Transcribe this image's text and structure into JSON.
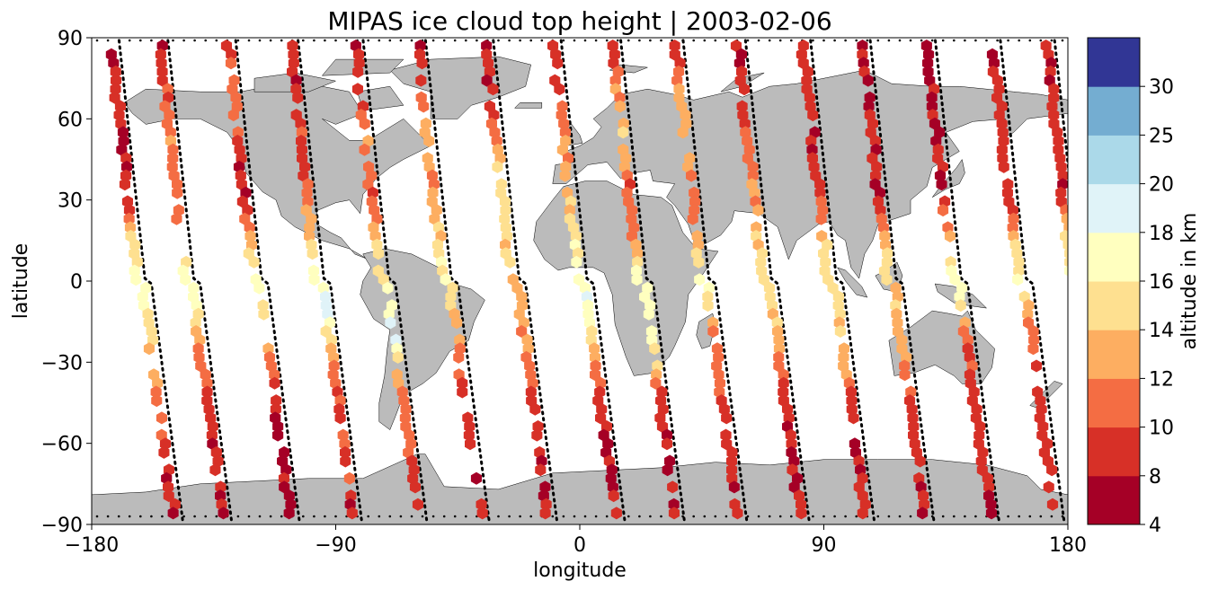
{
  "chart_data": {
    "type": "scatter",
    "title": "MIPAS ice cloud top height | 2003-02-06",
    "xlabel": "longitude",
    "ylabel": "latitude",
    "xlim": [
      -180,
      180
    ],
    "ylim": [
      -90,
      90
    ],
    "xticks": [
      -180,
      -90,
      0,
      90,
      180
    ],
    "yticks": [
      -90,
      -60,
      -30,
      0,
      30,
      60,
      90
    ],
    "colorbar": {
      "label": "altitude in km",
      "boundaries": [
        4,
        8,
        10,
        12,
        14,
        16,
        18,
        20,
        25,
        30
      ],
      "colors": [
        "#a50026",
        "#d73027",
        "#f46d43",
        "#fdae61",
        "#fee090",
        "#ffffbf",
        "#e0f3f8",
        "#abd9e9",
        "#74add1",
        "#313695"
      ],
      "tick_labels": [
        "4",
        "8",
        "10",
        "12",
        "14",
        "16",
        "18",
        "20",
        "25",
        "30"
      ]
    },
    "map": {
      "land_color": "#bbbbbb",
      "ocean_color": "#ffffff"
    },
    "orbits": [
      {
        "lon0": -173,
        "lat_vals": [
          89,
          80,
          65,
          45,
          30,
          12,
          0,
          -15,
          -20,
          -35,
          -55,
          -75
        ],
        "h_vals": [
          8,
          8,
          8,
          8,
          9,
          15,
          17,
          16,
          15,
          13,
          10,
          8
        ]
      },
      {
        "lon0": -155,
        "lat_vals": [
          88,
          70,
          50,
          30,
          10,
          -5,
          -25,
          -45,
          -65,
          -85
        ],
        "h_vals": [
          8,
          10,
          12,
          10,
          15,
          17,
          12,
          9,
          8,
          8
        ]
      },
      {
        "lon0": -130,
        "lat_vals": [
          88,
          68,
          50,
          30,
          10,
          0,
          -20,
          -40,
          -60,
          -82
        ],
        "h_vals": [
          8,
          12,
          9,
          8,
          15,
          17,
          13,
          9,
          8,
          8
        ]
      },
      {
        "lon0": -107,
        "lat_vals": [
          89,
          72,
          55,
          40,
          20,
          0,
          -10,
          -30,
          -50,
          -70,
          -83
        ],
        "h_vals": [
          8,
          8,
          10,
          9,
          14,
          17,
          20,
          12,
          9,
          10,
          8
        ]
      },
      {
        "lon0": -83,
        "lat_vals": [
          88,
          70,
          50,
          30,
          10,
          -5,
          -20,
          -40,
          -60,
          -80
        ],
        "h_vals": [
          8,
          8,
          12,
          10,
          14,
          17,
          18,
          12,
          10,
          9
        ]
      },
      {
        "lon0": -60,
        "lat_vals": [
          89,
          70,
          50,
          35,
          20,
          0,
          -20,
          -40,
          -60,
          -80
        ],
        "h_vals": [
          8,
          10,
          13,
          12,
          14,
          16,
          12,
          10,
          9,
          8
        ]
      },
      {
        "lon0": -35,
        "lat_vals": [
          88,
          65,
          45,
          25,
          10,
          -5,
          -20,
          -40,
          -60,
          -80
        ],
        "h_vals": [
          8,
          9,
          14,
          15,
          14,
          13,
          12,
          10,
          9,
          8
        ]
      },
      {
        "lon0": -10,
        "lat_vals": [
          88,
          70,
          50,
          30,
          10,
          -10,
          -25,
          -45,
          -65,
          -80
        ],
        "h_vals": [
          8,
          9,
          12,
          14,
          16,
          18,
          13,
          9,
          8,
          8
        ]
      },
      {
        "lon0": 12,
        "lat_vals": [
          88,
          70,
          55,
          35,
          15,
          0,
          -10,
          -25,
          -45,
          -65,
          -80
        ],
        "h_vals": [
          8,
          12,
          14,
          10,
          12,
          17,
          18,
          16,
          9,
          8,
          8
        ]
      },
      {
        "lon0": 35,
        "lat_vals": [
          88,
          70,
          50,
          30,
          10,
          0,
          -20,
          -40,
          -60,
          -80
        ],
        "h_vals": [
          8,
          12,
          14,
          10,
          15,
          17,
          12,
          10,
          9,
          8
        ]
      },
      {
        "lon0": 58,
        "lat_vals": [
          88,
          70,
          50,
          30,
          10,
          -5,
          -20,
          -40,
          -60,
          -80
        ],
        "h_vals": [
          8,
          9,
          10,
          12,
          15,
          15,
          13,
          9,
          8,
          8
        ]
      },
      {
        "lon0": 82,
        "lat_vals": [
          88,
          70,
          50,
          30,
          10,
          0,
          -25,
          -45,
          -65,
          -82
        ],
        "h_vals": [
          8,
          8,
          8,
          10,
          15,
          15,
          14,
          9,
          8,
          9
        ]
      },
      {
        "lon0": 104,
        "lat_vals": [
          88,
          70,
          50,
          30,
          10,
          0,
          -20,
          -40,
          -60,
          -80
        ],
        "h_vals": [
          8,
          8,
          8,
          8,
          15,
          14,
          13,
          10,
          9,
          8
        ]
      },
      {
        "lon0": 128,
        "lat_vals": [
          88,
          70,
          50,
          30,
          10,
          -5,
          -25,
          -45,
          -65,
          -82
        ],
        "h_vals": [
          8,
          8,
          8,
          8,
          16,
          17,
          10,
          9,
          9,
          8
        ]
      },
      {
        "lon0": 152,
        "lat_vals": [
          88,
          68,
          50,
          30,
          12,
          0,
          -20,
          -40,
          -60,
          -80
        ],
        "h_vals": [
          8,
          9,
          9,
          8,
          15,
          17,
          10,
          9,
          8,
          9
        ]
      },
      {
        "lon0": 172,
        "lat_vals": [
          88,
          72,
          55,
          35,
          15,
          0,
          -20,
          -40,
          -60,
          -80
        ],
        "h_vals": [
          8,
          8,
          9,
          8,
          15,
          16,
          12,
          9,
          8,
          8
        ]
      }
    ]
  }
}
